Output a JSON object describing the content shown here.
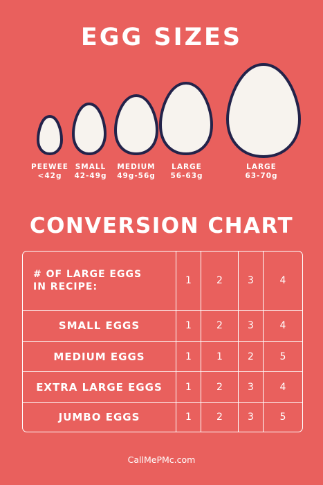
{
  "header": {
    "title": "EGG SIZES"
  },
  "eggs": [
    {
      "name": "PEEWEE",
      "weight": "<42g"
    },
    {
      "name": "SMALL",
      "weight": "42-49g"
    },
    {
      "name": "MEDIUM",
      "weight": "49g-56g"
    },
    {
      "name": "LARGE",
      "weight": "56-63g"
    },
    {
      "name": "LARGE",
      "weight": "63-70g"
    }
  ],
  "chart": {
    "title": "CONVERSION CHART",
    "header_line1": "# OF LARGE EGGS",
    "header_line2": "IN RECIPE:",
    "header_values": [
      "1",
      "2",
      "3",
      "4"
    ],
    "rows": [
      {
        "label": "SMALL EGGS",
        "values": [
          "1",
          "2",
          "3",
          "4"
        ]
      },
      {
        "label": "MEDIUM EGGS",
        "values": [
          "1",
          "1",
          "2",
          "5"
        ]
      },
      {
        "label": "EXTRA LARGE EGGS",
        "values": [
          "1",
          "2",
          "3",
          "4"
        ]
      },
      {
        "label": "JUMBO EGGS",
        "values": [
          "1",
          "2",
          "3",
          "5"
        ]
      }
    ]
  },
  "footer": {
    "site": "CallMePMc.com"
  },
  "colors": {
    "background": "#e9605d",
    "egg_fill": "#f7f3ee",
    "egg_outline": "#23234a",
    "text": "#ffffff"
  }
}
